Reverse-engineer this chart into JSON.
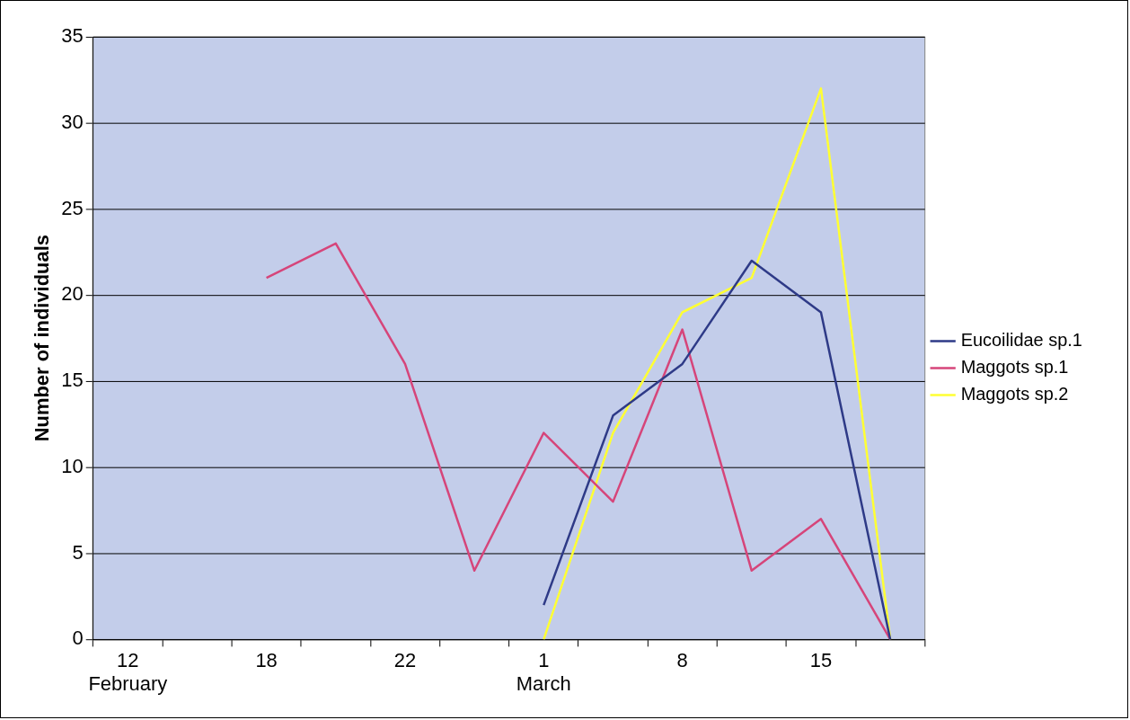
{
  "chart_data": {
    "type": "line",
    "ylabel": "Number of individuals",
    "categories": [
      "12\nFebruary",
      null,
      "18",
      null,
      "22",
      null,
      "1\nMarch",
      null,
      "8",
      null,
      "15",
      null
    ],
    "series": [
      {
        "name": "Eucoilidae sp.1",
        "color": "#2e3a87",
        "values": [
          null,
          null,
          null,
          null,
          null,
          null,
          2,
          13,
          16,
          22,
          19,
          0
        ]
      },
      {
        "name": "Maggots sp.1",
        "color": "#d6457a",
        "values": [
          null,
          null,
          21,
          23,
          16,
          4,
          12,
          8,
          18,
          4,
          7,
          0
        ]
      },
      {
        "name": "Maggots sp.2",
        "color": "#ffff33",
        "values": [
          null,
          null,
          null,
          null,
          null,
          null,
          0,
          12,
          19,
          21,
          32,
          0
        ]
      }
    ],
    "ylim": [
      0,
      35
    ],
    "yticks": [
      0,
      5,
      10,
      15,
      20,
      25,
      30,
      35
    ],
    "grid": "y",
    "legend": "right",
    "marker": "none",
    "line_style": "solid"
  }
}
